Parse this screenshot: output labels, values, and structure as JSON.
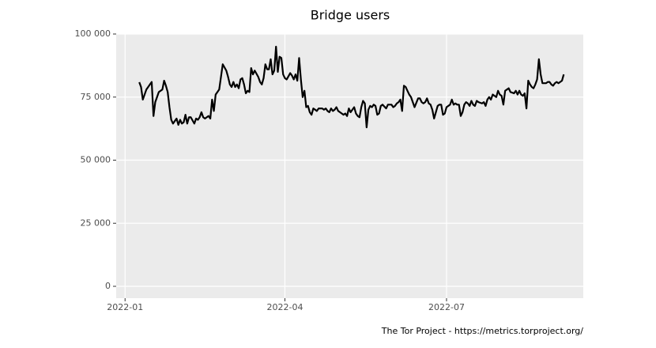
{
  "chart_data": {
    "type": "line",
    "title": "Bridge users",
    "caption": "The Tor Project - https://metrics.torproject.org/",
    "x": [
      8,
      9,
      10,
      11,
      12,
      13,
      14,
      15,
      16,
      17,
      18,
      19,
      21,
      22,
      23,
      24,
      25,
      26,
      27,
      28,
      29,
      30,
      31,
      32,
      33,
      34,
      35,
      36,
      37,
      39,
      40,
      41,
      42,
      43,
      44,
      45,
      46,
      47,
      48,
      49,
      50,
      51,
      52,
      53,
      54,
      55,
      57,
      58,
      59,
      60,
      61,
      62,
      63,
      64,
      65,
      66,
      67,
      68,
      69,
      70,
      71,
      72,
      73,
      75,
      76,
      77,
      78,
      79,
      80,
      81,
      82,
      83,
      84,
      85,
      86,
      87,
      88,
      89,
      90,
      91,
      93,
      94,
      95,
      96,
      97,
      98,
      99,
      100,
      101,
      102,
      103,
      104,
      105,
      106,
      107,
      108,
      109,
      111,
      112,
      113,
      114,
      115,
      116,
      117,
      118,
      119,
      120,
      121,
      122,
      123,
      124,
      125,
      126,
      127,
      129,
      130,
      131,
      132,
      133,
      134,
      135,
      136,
      137,
      138,
      139,
      140,
      141,
      142,
      143,
      144,
      145,
      147,
      148,
      149,
      150,
      151,
      152,
      153,
      154,
      155,
      156,
      157,
      158,
      159,
      160,
      161,
      162,
      163,
      165,
      166,
      167,
      168,
      169,
      170,
      171,
      172,
      173,
      174,
      175,
      176,
      177,
      178,
      179,
      180,
      181,
      183,
      184,
      185,
      186,
      187,
      188,
      189,
      190,
      191,
      192,
      193,
      194,
      195,
      196,
      197,
      198,
      199,
      201,
      202,
      203,
      204,
      205,
      206,
      207,
      208,
      209,
      210,
      211,
      212,
      213,
      214,
      215,
      216,
      217,
      219,
      220,
      221,
      222,
      223,
      224,
      225,
      226,
      227,
      228,
      229,
      230,
      231,
      232,
      233,
      234,
      235,
      237,
      238,
      239,
      240,
      241,
      242,
      243,
      244,
      245,
      246,
      247
    ],
    "series": [
      {
        "name": "Bridge users",
        "color": "#000000",
        "values": [
          80900,
          79000,
          74000,
          76000,
          78000,
          79000,
          80000,
          81000,
          67500,
          73000,
          75000,
          77000,
          78000,
          81500,
          79500,
          77000,
          71000,
          66000,
          64500,
          65500,
          66500,
          64000,
          66000,
          64500,
          65000,
          68000,
          64500,
          67000,
          67000,
          64500,
          66500,
          66000,
          67000,
          69000,
          67000,
          66500,
          67000,
          67500,
          66500,
          74000,
          69500,
          76000,
          77000,
          78000,
          83000,
          88000,
          85500,
          83000,
          80000,
          79000,
          81000,
          79000,
          80000,
          78500,
          82000,
          82500,
          80000,
          76500,
          77500,
          77000,
          86500,
          84000,
          85500,
          83000,
          81000,
          80000,
          82500,
          88000,
          86000,
          86000,
          90000,
          84000,
          85500,
          95000,
          85000,
          91000,
          90500,
          84000,
          82500,
          82000,
          84500,
          83500,
          82000,
          84000,
          81500,
          90500,
          82000,
          75000,
          77500,
          71000,
          71500,
          69000,
          68000,
          70500,
          70000,
          69500,
          70500,
          70500,
          70000,
          70500,
          69500,
          69000,
          70500,
          69500,
          70000,
          71000,
          69500,
          69000,
          68500,
          68000,
          68500,
          67500,
          70500,
          69000,
          71000,
          68500,
          67500,
          67000,
          71000,
          73500,
          72500,
          63000,
          70000,
          71500,
          71000,
          72000,
          71500,
          68000,
          68500,
          71500,
          72000,
          70500,
          72000,
          72000,
          72000,
          71000,
          71500,
          72500,
          73000,
          74000,
          69500,
          79500,
          79000,
          77500,
          76000,
          75000,
          73000,
          71000,
          74500,
          74500,
          73000,
          72500,
          73000,
          74500,
          72500,
          72000,
          70000,
          66500,
          69000,
          71500,
          72000,
          72000,
          68000,
          68500,
          71000,
          72000,
          74000,
          72000,
          72500,
          72000,
          72000,
          67500,
          69000,
          72000,
          73000,
          72500,
          71500,
          73500,
          72000,
          71500,
          73500,
          73000,
          72500,
          73000,
          71500,
          74000,
          75000,
          74000,
          76000,
          75500,
          75000,
          77500,
          76000,
          75500,
          72000,
          77500,
          78000,
          78500,
          77000,
          76500,
          77500,
          76000,
          77500,
          76000,
          75500,
          76500,
          70500,
          81500,
          80000,
          79000,
          78500,
          80000,
          82000,
          90000,
          84000,
          80500,
          80500,
          81000,
          81000,
          80000,
          79500,
          80500,
          81000,
          80500,
          81000,
          81500,
          84000
        ]
      }
    ],
    "xlim": [
      -5,
      258
    ],
    "xticks": [
      {
        "value": 0,
        "label": "2022-01"
      },
      {
        "value": 90,
        "label": "2022-04"
      },
      {
        "value": 181,
        "label": "2022-07"
      }
    ],
    "ylim": [
      -4700,
      100000
    ],
    "yticks": [
      0,
      {
        "value": 25000,
        "label": "25 000"
      },
      {
        "value": 50000,
        "label": "50 000"
      },
      {
        "value": 75000,
        "label": "75 000"
      },
      {
        "value": 100000,
        "label": "100 000"
      }
    ],
    "grid": true
  }
}
